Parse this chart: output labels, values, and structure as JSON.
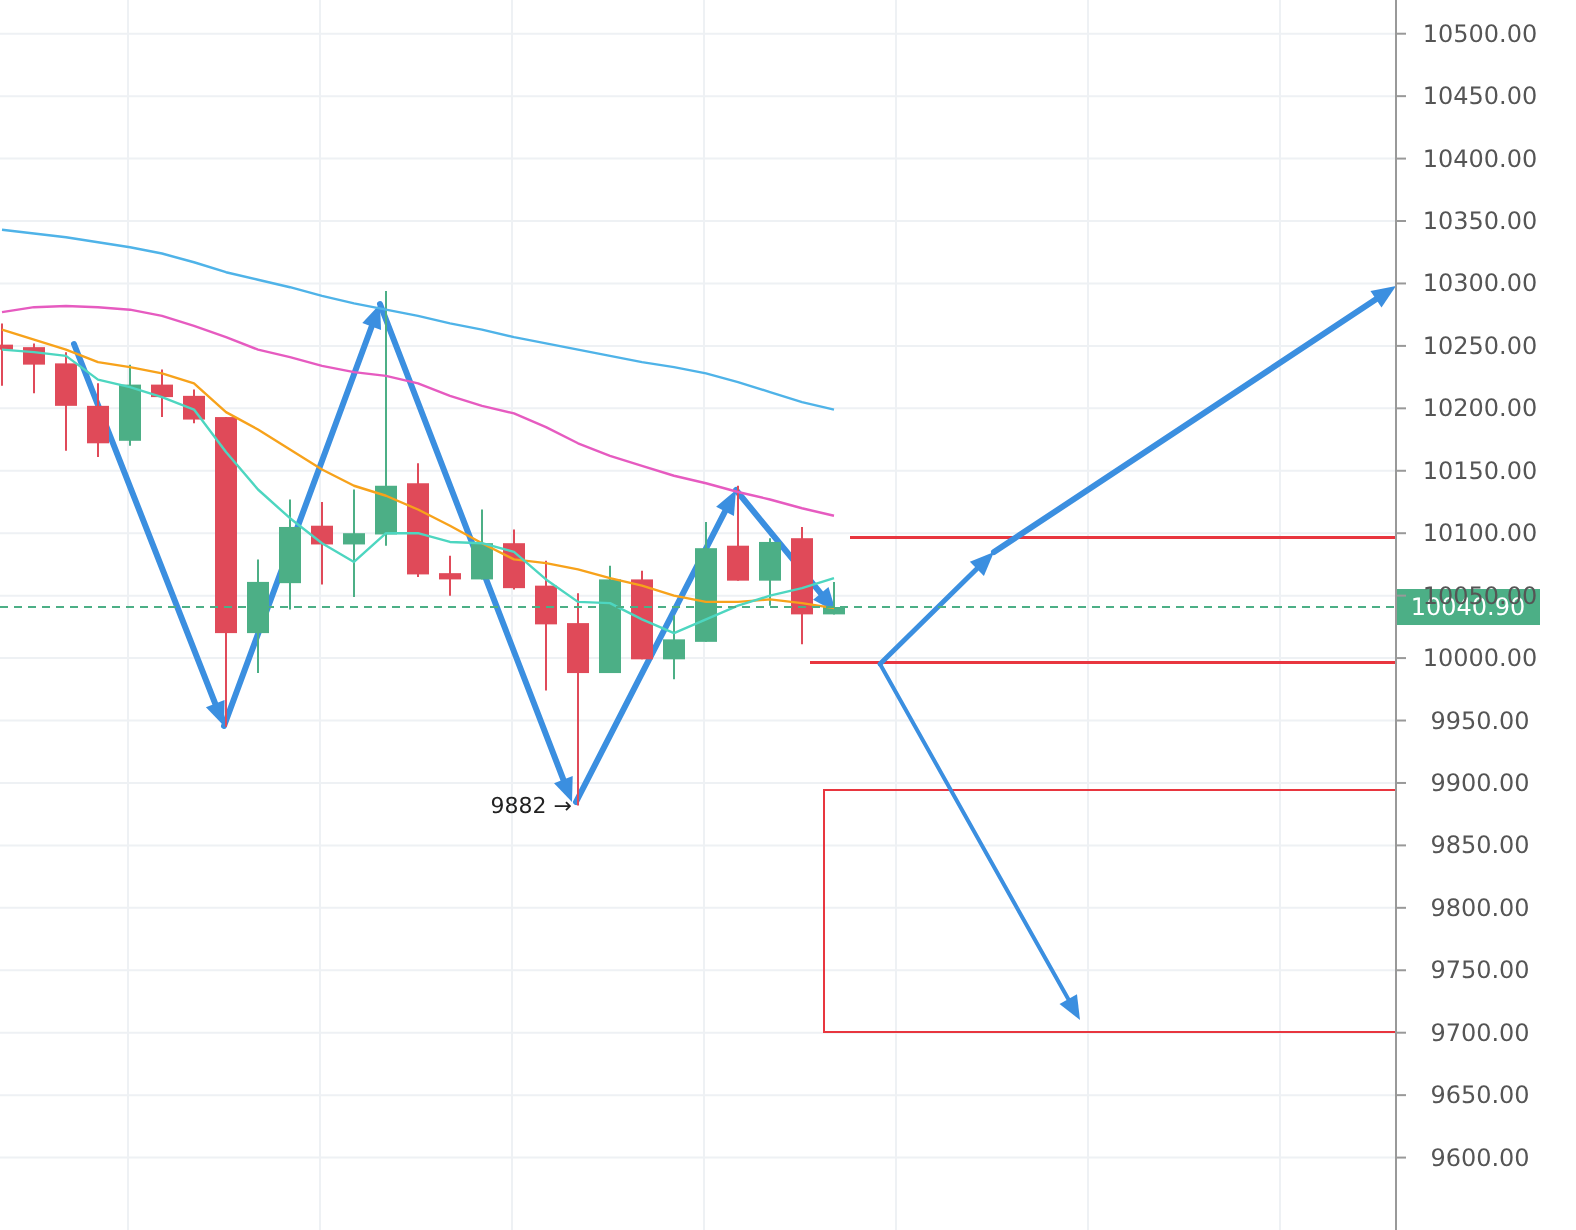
{
  "chart_data": {
    "type": "candlestick",
    "categories": [
      null,
      null,
      null,
      null,
      null,
      null,
      null,
      null,
      null,
      null,
      null,
      null,
      null,
      null,
      null,
      null,
      null,
      null,
      null,
      null,
      null,
      null,
      null,
      null,
      null,
      null,
      null
    ],
    "ohlc": [
      [
        10251,
        10268,
        10218,
        10247
      ],
      [
        10249,
        10252,
        10212,
        10235
      ],
      [
        10236,
        10245,
        10166,
        10202
      ],
      [
        10202,
        10220,
        10161,
        10172
      ],
      [
        10174,
        10235,
        10170,
        10219
      ],
      [
        10219,
        10231,
        10193,
        10209
      ],
      [
        10210,
        10215,
        10188,
        10191
      ],
      [
        10193,
        10193,
        9945,
        10020
      ],
      [
        10020,
        10079,
        9988,
        10061
      ],
      [
        10060,
        10127,
        10039,
        10105
      ],
      [
        10106,
        10125,
        10059,
        10091
      ],
      [
        10091,
        10135,
        10049,
        10100
      ],
      [
        10099,
        10294,
        10090,
        10138
      ],
      [
        10140,
        10156,
        10065,
        10067
      ],
      [
        10068,
        10082,
        10050,
        10063
      ],
      [
        10063,
        10119,
        10063,
        10092
      ],
      [
        10092,
        10103,
        10055,
        10056
      ],
      [
        10058,
        10078,
        9974,
        10027
      ],
      [
        10028,
        10052,
        9882,
        9988
      ],
      [
        9988,
        10074,
        9988,
        10063
      ],
      [
        10063,
        10070,
        9999,
        9999
      ],
      [
        9999,
        10034,
        9983,
        10015
      ],
      [
        10013,
        10109,
        10013,
        10088
      ],
      [
        10090,
        10138,
        10062,
        10062
      ],
      [
        10062,
        10096,
        10042,
        10093
      ],
      [
        10096,
        10105,
        10011,
        10035
      ],
      [
        10035,
        10061,
        10035,
        10040.9
      ]
    ],
    "colors": [
      "#e04a59",
      "#e04a59",
      "#e04a59",
      "#e04a59",
      "#4caf86",
      "#e04a59",
      "#e04a59",
      "#e04a59",
      "#4caf86",
      "#4caf86",
      "#e04a59",
      "#4caf86",
      "#4caf86",
      "#e04a59",
      "#e04a59",
      "#4caf86",
      "#e04a59",
      "#e04a59",
      "#e04a59",
      "#4caf86",
      "#e04a59",
      "#4caf86",
      "#4caf86",
      "#e04a59",
      "#4caf86",
      "#e04a59",
      "#4caf86"
    ],
    "series": [
      {
        "type": "line",
        "color": "#4fb3e8",
        "values": [
          10343,
          10340,
          10337,
          10333,
          10329,
          10324,
          10317,
          10309,
          10303,
          10297,
          10290,
          10284,
          10279,
          10274,
          10268,
          10263,
          10257,
          10252,
          10247,
          10242,
          10237,
          10233,
          10228,
          10221,
          10213,
          10205,
          10199
        ]
      },
      {
        "type": "line",
        "color": "#e65bc0",
        "values": [
          10277,
          10281,
          10282,
          10281,
          10279,
          10274,
          10266,
          10257,
          10247,
          10241,
          10234,
          10229,
          10226,
          10220,
          10210,
          10202,
          10196,
          10185,
          10172,
          10162,
          10154,
          10146,
          10140,
          10133,
          10127,
          10120,
          10114
        ]
      },
      {
        "type": "line",
        "color": "#f7a21b",
        "values": [
          10263,
          10255,
          10247,
          10237,
          10233,
          10228,
          10220,
          10197,
          10183,
          10167,
          10151,
          10138,
          10130,
          10119,
          10106,
          10092,
          10079,
          10076,
          10071,
          10064,
          10058,
          10050,
          10045,
          10045,
          10047,
          10044,
          10040
        ]
      },
      {
        "type": "line",
        "color": "#4dd6c0",
        "values": [
          10247,
          10245,
          10242,
          10223,
          10217,
          10209,
          10199,
          10165,
          10135,
          10112,
          10092,
          10077,
          10100,
          10100,
          10093,
          10092,
          10085,
          10063,
          10045,
          10044,
          10031,
          10020,
          10031,
          10042,
          10050,
          10056,
          10064
        ]
      }
    ],
    "ylim": [
      9542,
      10527
    ],
    "yticks": [
      {
        "value": 9600,
        "label": "9600.00"
      },
      {
        "value": 9650,
        "label": "9650.00"
      },
      {
        "value": 9700,
        "label": "9700.00"
      },
      {
        "value": 9750,
        "label": "9750.00"
      },
      {
        "value": 9800,
        "label": "9800.00"
      },
      {
        "value": 9850,
        "label": "9850.00"
      },
      {
        "value": 9900,
        "label": "9900.00"
      },
      {
        "value": 9950,
        "label": "9950.00"
      },
      {
        "value": 10000,
        "label": "10000.00"
      },
      {
        "value": 10050,
        "label": "10050.00"
      },
      {
        "value": 10100,
        "label": "10100.00"
      },
      {
        "value": 10150,
        "label": "10150.00"
      },
      {
        "value": 10200,
        "label": "10200.00"
      },
      {
        "value": 10250,
        "label": "10250.00"
      },
      {
        "value": 10300,
        "label": "10300.00"
      },
      {
        "value": 10350,
        "label": "10350.00"
      },
      {
        "value": 10400,
        "label": "10400.00"
      },
      {
        "value": 10450,
        "label": "10450.00"
      },
      {
        "value": 10500,
        "label": "10500.00"
      }
    ],
    "ref_lines": [
      {
        "axis": "y",
        "value": 10040.9,
        "label": "10040.90",
        "color": "#4caf86",
        "line_style": "dashed"
      }
    ],
    "annotations": [
      "9882 →"
    ],
    "grid": true
  }
}
